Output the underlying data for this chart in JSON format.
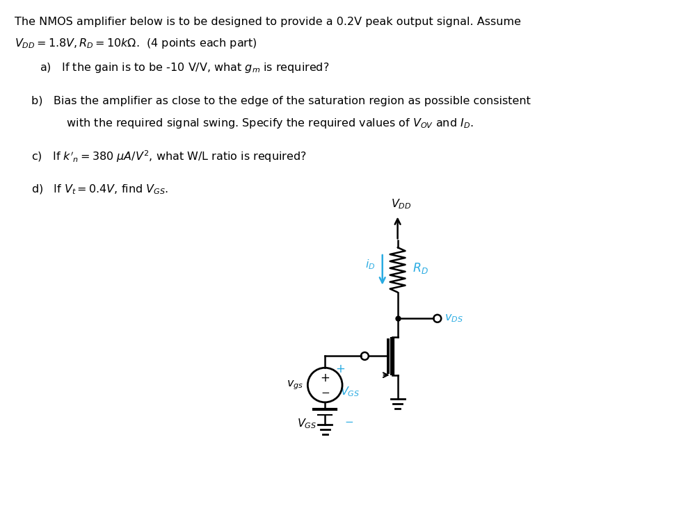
{
  "bg_color": "#ffffff",
  "text_color": "#000000",
  "cyan_color": "#29abe2",
  "title_line1": "The NMOS amplifier below is to be designed to provide a 0.2V peak output signal. Assume",
  "title_line2": "$V_{DD} = 1.8V, R_D = 10k\\Omega$.  (4 points each part)",
  "part_a": "a)   If the gain is to be -10 V/V, what $g_m$ is required?",
  "part_b_line1": "b)   Bias the amplifier as close to the edge of the saturation region as possible consistent",
  "part_b_line2": "          with the required signal swing. Specify the required values of $V_{OV}$ and $I_D$.",
  "part_c": "c)   If $k'_n = 380\\ \\mu A/V^2$, what W/L ratio is required?",
  "part_d": "d)   If $V_t = 0.4V$, find $V_{GS}$.",
  "figsize": [
    10.03,
    7.31
  ],
  "dpi": 100
}
